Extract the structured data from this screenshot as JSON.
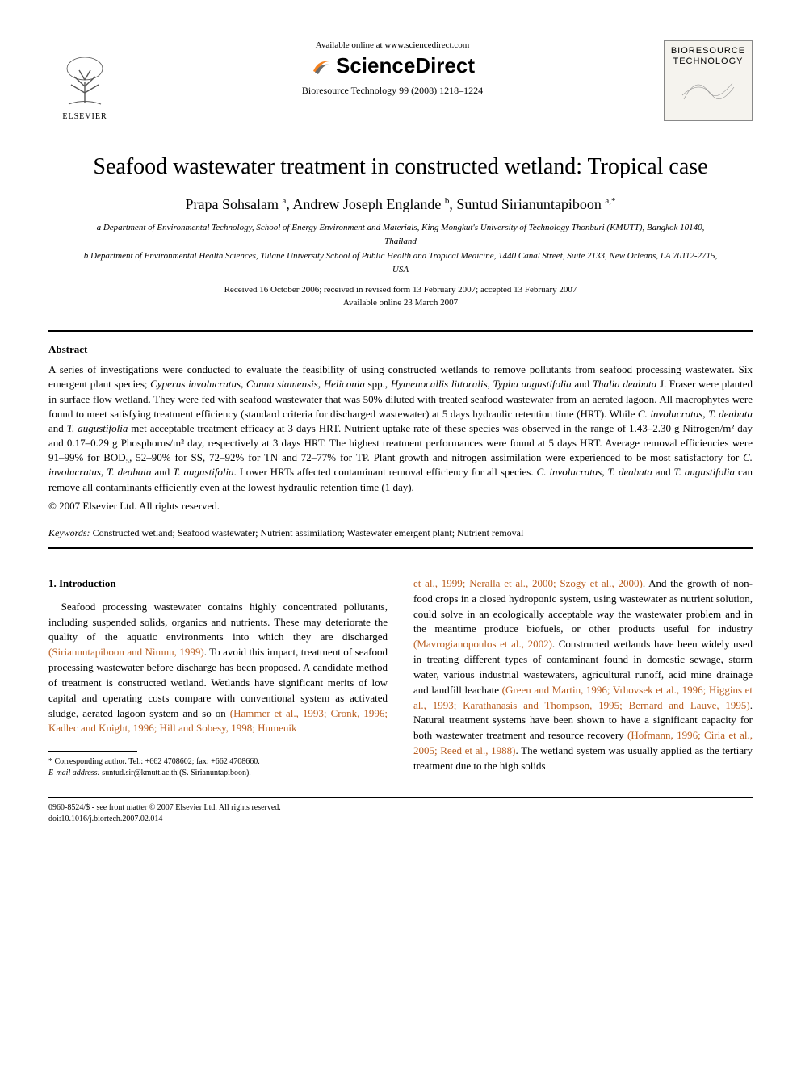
{
  "header": {
    "available_online": "Available online at www.sciencedirect.com",
    "sciencedirect": "ScienceDirect",
    "elsevier_label": "ELSEVIER",
    "journal_citation": "Bioresource Technology 99 (2008) 1218–1224",
    "journal_cover_title": "BIORESOURCE TECHNOLOGY"
  },
  "title": "Seafood wastewater treatment in constructed wetland: Tropical case",
  "authors_html": "Prapa Sohsalam <sup>a</sup>, Andrew Joseph Englande <sup>b</sup>, Suntud Sirianuntapiboon <sup>a,*</sup>",
  "affiliations": {
    "a": "a Department of Environmental Technology, School of Energy Environment and Materials, King Mongkut's University of Technology Thonburi (KMUTT), Bangkok 10140, Thailand",
    "b": "b Department of Environmental Health Sciences, Tulane University School of Public Health and Tropical Medicine, 1440 Canal Street, Suite 2133, New Orleans, LA 70112-2715, USA"
  },
  "dates": {
    "line1": "Received 16 October 2006; received in revised form 13 February 2007; accepted 13 February 2007",
    "line2": "Available online 23 March 2007"
  },
  "abstract": {
    "heading": "Abstract",
    "body": "A series of investigations were conducted to evaluate the feasibility of using constructed wetlands to remove pollutants from seafood processing wastewater. Six emergent plant species; Cyperus involucratus, Canna siamensis, Heliconia spp., Hymenocallis littoralis, Typha augustifolia and Thalia deabata J. Fraser were planted in surface flow wetland. They were fed with seafood wastewater that was 50% diluted with treated seafood wastewater from an aerated lagoon. All macrophytes were found to meet satisfying treatment efficiency (standard criteria for discharged wastewater) at 5 days hydraulic retention time (HRT). While C. involucratus, T. deabata and T. augustifolia met acceptable treatment efficacy at 3 days HRT. Nutrient uptake rate of these species was observed in the range of 1.43–2.30 g Nitrogen/m² day and 0.17–0.29 g Phosphorus/m² day, respectively at 3 days HRT. The highest treatment performances were found at 5 days HRT. Average removal efficiencies were 91–99% for BOD₅, 52–90% for SS, 72–92% for TN and 72–77% for TP. Plant growth and nitrogen assimilation were experienced to be most satisfactory for C. involucratus, T. deabata and T. augustifolia. Lower HRTs affected contaminant removal efficiency for all species. C. involucratus, T. deabata and T. augustifolia can remove all contaminants efficiently even at the lowest hydraulic retention time (1 day).",
    "copyright": "© 2007 Elsevier Ltd. All rights reserved."
  },
  "keywords": {
    "label": "Keywords:",
    "list": "Constructed wetland; Seafood wastewater; Nutrient assimilation; Wastewater emergent plant; Nutrient removal"
  },
  "intro": {
    "heading": "1. Introduction",
    "col1": "Seafood processing wastewater contains highly concentrated pollutants, including suspended solids, organics and nutrients. These may deteriorate the quality of the aquatic environments into which they are discharged (Sirianuntapiboon and Nimnu, 1999). To avoid this impact, treatment of seafood processing wastewater before discharge has been proposed. A candidate method of treatment is constructed wetland. Wetlands have significant merits of low capital and operating costs compare with conventional system as activated sludge, aerated lagoon system and so on (Hammer et al., 1993; Cronk, 1996; Kadlec and Knight, 1996; Hill and Sobesy, 1998; Humenik",
    "col2": "et al., 1999; Neralla et al., 2000; Szogy et al., 2000). And the growth of non-food crops in a closed hydroponic system, using wastewater as nutrient solution, could solve in an ecologically acceptable way the wastewater problem and in the meantime produce biofuels, or other products useful for industry (Mavrogianopoulos et al., 2002). Constructed wetlands have been widely used in treating different types of contaminant found in domestic sewage, storm water, various industrial wastewaters, agricultural runoff, acid mine drainage and landfill leachate (Green and Martin, 1996; Vrhovsek et al., 1996; Higgins et al., 1993; Karathanasis and Thompson, 1995; Bernard and Lauve, 1995). Natural treatment systems have been shown to have a significant capacity for both wastewater treatment and resource recovery (Hofmann, 1996; Ciria et al., 2005; Reed et al., 1988). The wetland system was usually applied as the tertiary treatment due to the high solids"
  },
  "footnote": {
    "corr": "* Corresponding author. Tel.: +662 4708602; fax: +662 4708660.",
    "email_label": "E-mail address:",
    "email": "suntud.sir@kmutt.ac.th",
    "email_tail": " (S. Sirianuntapiboon)."
  },
  "footer": {
    "line1": "0960-8524/$ - see front matter © 2007 Elsevier Ltd. All rights reserved.",
    "line2": "doi:10.1016/j.biortech.2007.02.014"
  },
  "colors": {
    "citation": "#b85c1e",
    "text": "#000000",
    "bg": "#ffffff",
    "cover_bg": "#f5f3ee",
    "logo_orange": "#f58220",
    "logo_grey": "#6b6b6b"
  },
  "typography": {
    "body_fontsize": 13,
    "title_fontsize": 28,
    "authors_fontsize": 18,
    "affil_fontsize": 11,
    "footnote_fontsize": 10
  }
}
